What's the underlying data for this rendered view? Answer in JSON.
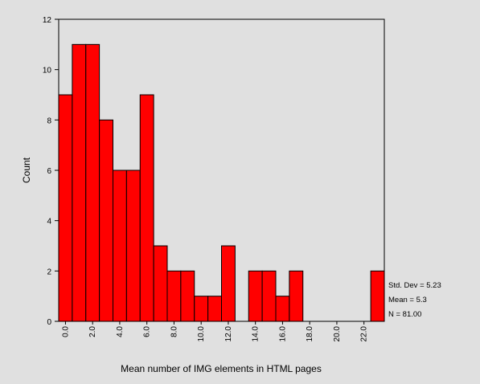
{
  "chart_data": {
    "type": "bar",
    "title": "",
    "xlabel": "Mean number of IMG elements in HTML pages",
    "ylabel": "Count",
    "bar_color": "#ff0000",
    "bar_edge_color": "#000000",
    "background_color": "#e0e0e0",
    "grid": false,
    "bin_width": 1,
    "bin_start": 0,
    "x_range": [
      0,
      24
    ],
    "ylim": [
      0,
      12
    ],
    "y_ticks": [
      "0",
      "2",
      "4",
      "6",
      "8",
      "10",
      "12"
    ],
    "x_ticks": [
      "0.0",
      "2.0",
      "4.0",
      "6.0",
      "8.0",
      "10.0",
      "12.0",
      "14.0",
      "16.0",
      "18.0",
      "20.0",
      "22.0"
    ],
    "counts": [
      9,
      11,
      11,
      8,
      6,
      6,
      9,
      3,
      2,
      2,
      1,
      1,
      3,
      0,
      2,
      2,
      1,
      2,
      0,
      0,
      0,
      0,
      0,
      2
    ],
    "stats": {
      "std_dev": "Std. Dev = 5.23",
      "mean": "Mean = 5.3",
      "n": "N = 81.00"
    }
  }
}
